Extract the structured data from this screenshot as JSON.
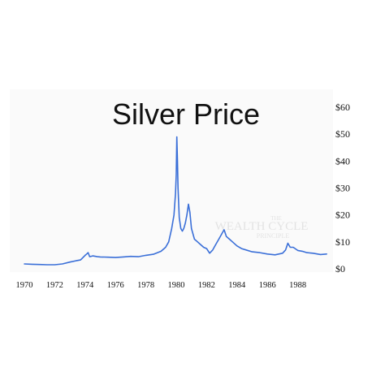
{
  "chart_data": {
    "type": "line",
    "title": "Silver Price",
    "xlabel": "",
    "ylabel": "",
    "xlim": [
      1970,
      1990
    ],
    "ylim": [
      0,
      60
    ],
    "x_ticks": [
      "1970",
      "1972",
      "1974",
      "1976",
      "1978",
      "1980",
      "1982",
      "1984",
      "1986",
      "1988"
    ],
    "y_ticks": [
      "$0",
      "$10",
      "$20",
      "$30",
      "$40",
      "$50",
      "$60"
    ],
    "grid": false,
    "legend": "none",
    "line_color": "#3a6fd8",
    "series": [
      {
        "x": [
          1970.0,
          1970.5,
          1971.0,
          1971.5,
          1972.0,
          1972.5,
          1973.0,
          1973.4,
          1973.7,
          1974.0,
          1974.1,
          1974.2,
          1974.3,
          1974.5,
          1974.8,
          1975.0,
          1975.5,
          1976.0,
          1976.5,
          1977.0,
          1977.5,
          1978.0,
          1978.5,
          1979.0,
          1979.3,
          1979.5,
          1979.7,
          1979.85,
          1979.95,
          1980.0,
          1980.04,
          1980.08,
          1980.12,
          1980.2,
          1980.3,
          1980.4,
          1980.5,
          1980.6,
          1980.7,
          1980.8,
          1980.9,
          1981.0,
          1981.2,
          1981.4,
          1981.6,
          1981.8,
          1982.0,
          1982.2,
          1982.4,
          1982.6,
          1982.8,
          1983.0,
          1983.15,
          1983.3,
          1983.5,
          1983.7,
          1984.0,
          1984.3,
          1984.6,
          1985.0,
          1985.5,
          1986.0,
          1986.5,
          1987.0,
          1987.2,
          1987.35,
          1987.5,
          1987.7,
          1988.0,
          1988.3,
          1988.6,
          1989.0,
          1989.5,
          1989.9
        ],
        "values": [
          1.8,
          1.7,
          1.6,
          1.5,
          1.5,
          1.8,
          2.5,
          3.0,
          3.3,
          5.0,
          5.5,
          6.0,
          4.5,
          4.8,
          4.5,
          4.4,
          4.3,
          4.2,
          4.4,
          4.6,
          4.5,
          5.0,
          5.4,
          6.5,
          8.0,
          10.0,
          15.0,
          20.0,
          28.0,
          35.0,
          49.0,
          40.0,
          30.0,
          19.0,
          15.0,
          14.0,
          15.0,
          17.0,
          20.0,
          24.0,
          21.0,
          15.0,
          11.0,
          10.0,
          9.0,
          8.0,
          7.5,
          5.8,
          7.0,
          9.0,
          11.0,
          13.0,
          14.5,
          12.0,
          11.0,
          10.0,
          8.5,
          7.5,
          7.0,
          6.3,
          6.0,
          5.5,
          5.2,
          5.8,
          7.0,
          9.5,
          8.0,
          8.0,
          6.8,
          6.5,
          6.0,
          5.8,
          5.3,
          5.5
        ]
      }
    ]
  },
  "watermark": {
    "line1_small": "THE",
    "line2": "WEALTH CYCLE",
    "line3": "PRINCIPLE"
  }
}
